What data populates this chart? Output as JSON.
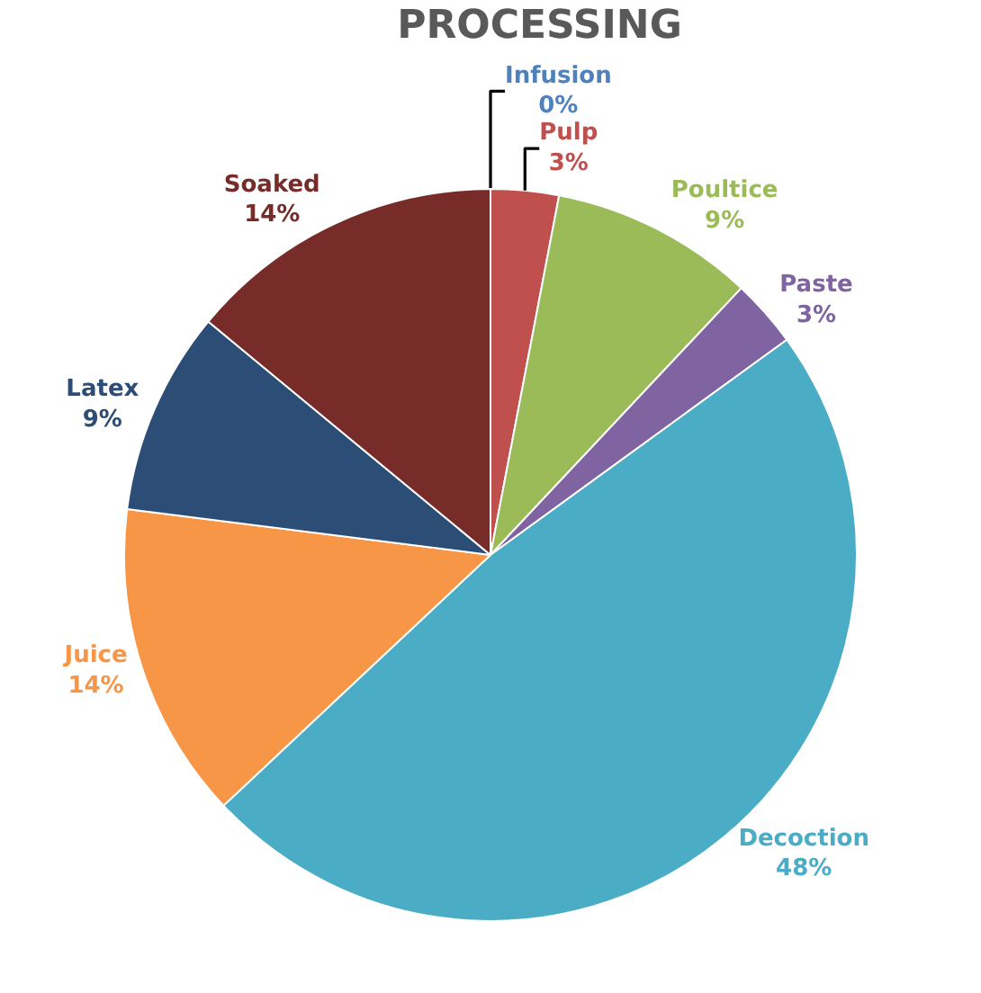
{
  "chart_data": {
    "type": "pie",
    "title": "PROCESSING",
    "categories": [
      "Infusion",
      "Pulp",
      "Poultice",
      "Paste",
      "Decoction",
      "Juice",
      "Latex",
      "Soaked"
    ],
    "values": [
      0,
      3,
      9,
      3,
      48,
      14,
      9,
      14
    ],
    "value_labels": [
      "0%",
      "3%",
      "9%",
      "3%",
      "48%",
      "14%",
      "9%",
      "14%"
    ],
    "colors": [
      "#4f81bd",
      "#c0504d",
      "#9bbb59",
      "#8064a2",
      "#4bacc6",
      "#f79646",
      "#2c4d75",
      "#772c2a"
    ],
    "legend": false
  }
}
